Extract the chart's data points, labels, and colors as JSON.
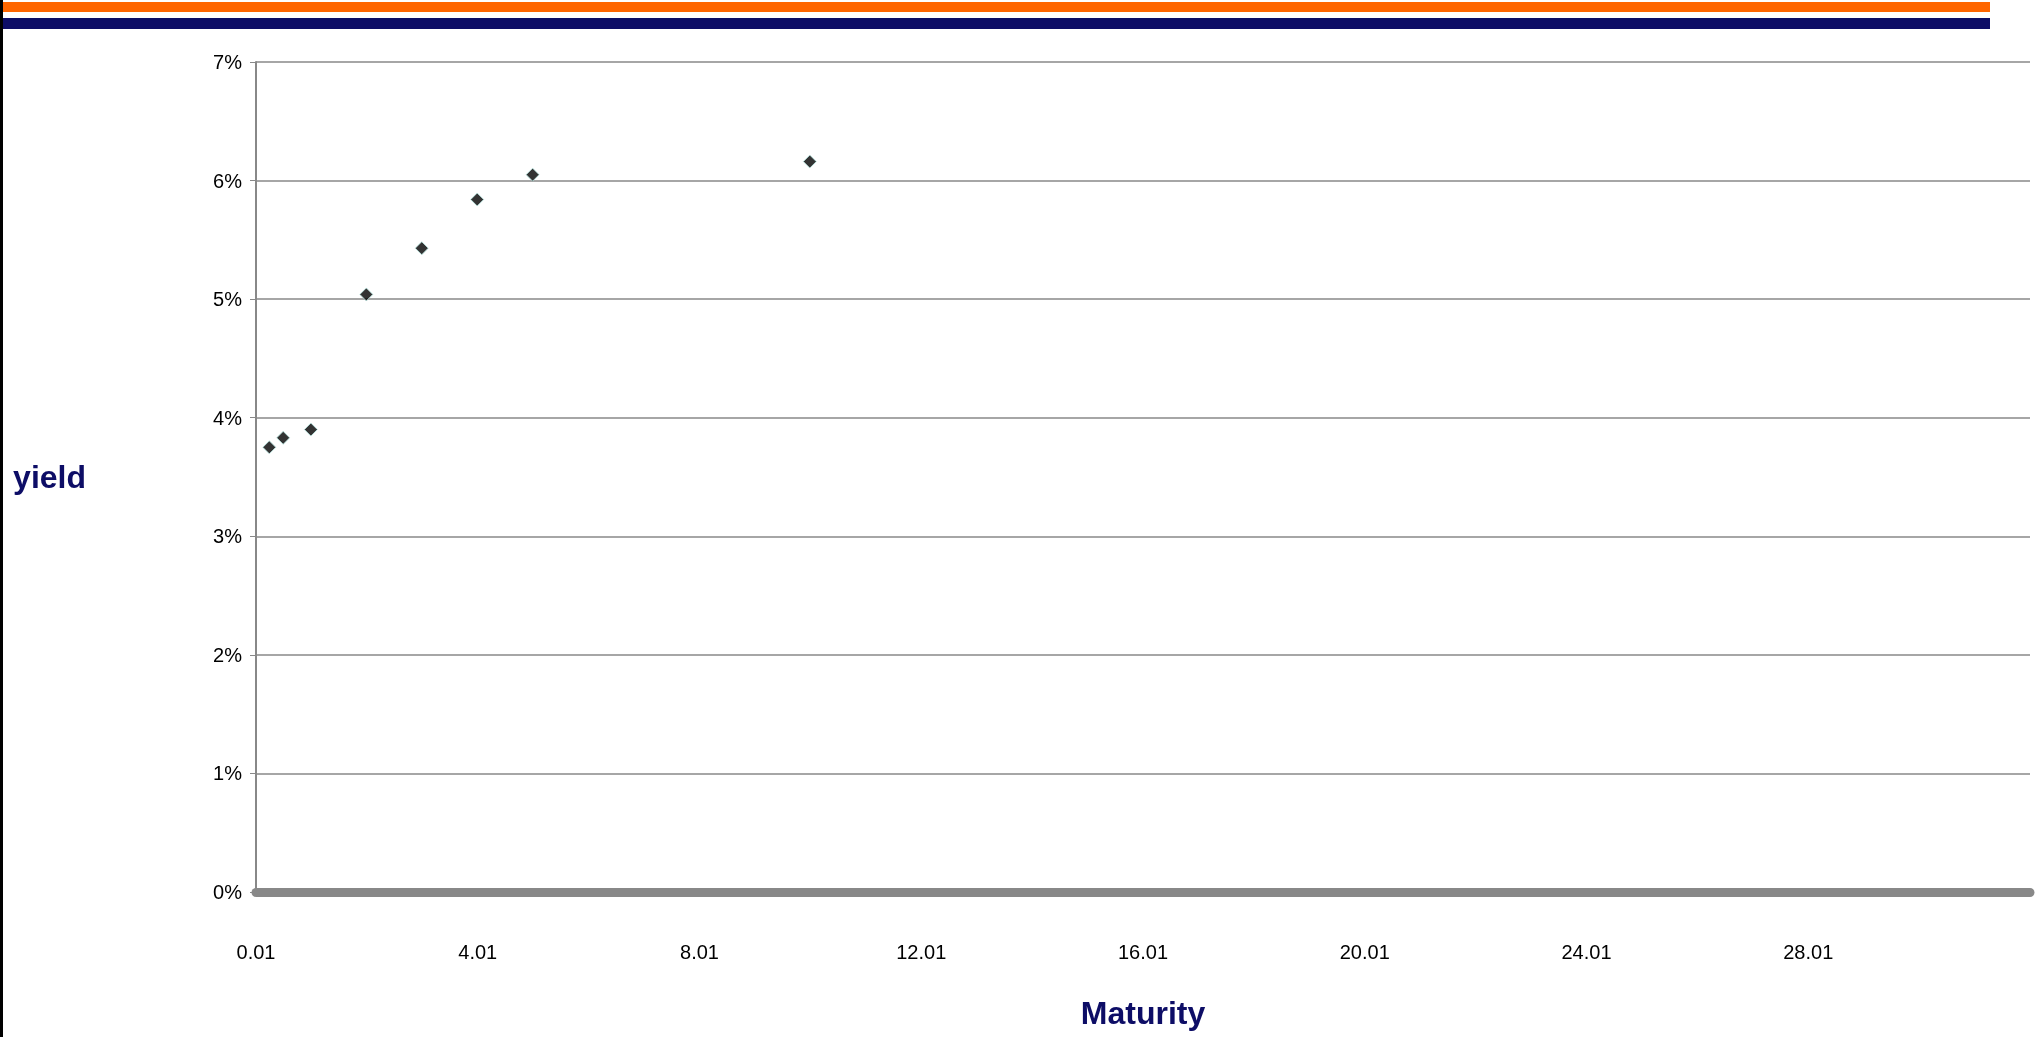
{
  "chart_data": {
    "type": "scatter",
    "xlabel": "Maturity",
    "ylabel": "yield",
    "x": [
      0.25,
      0.5,
      1,
      2,
      3,
      4,
      5,
      10
    ],
    "values": [
      3.75,
      3.83,
      3.9,
      5.04,
      5.43,
      5.84,
      6.05,
      6.16
    ],
    "color": "#000000",
    "marker": "diamond",
    "xlim": [
      0.01,
      32.01
    ],
    "xticks": [
      0.01,
      4.01,
      8.01,
      12.01,
      16.01,
      20.01,
      24.01,
      28.01
    ],
    "ylim": [
      0,
      7
    ],
    "yticks": [
      {
        "value": 0,
        "label": "0%"
      },
      {
        "value": 1,
        "label": "1%"
      },
      {
        "value": 2,
        "label": "2%"
      },
      {
        "value": 3,
        "label": "3%"
      },
      {
        "value": 4,
        "label": "4%"
      },
      {
        "value": 5,
        "label": "5%"
      },
      {
        "value": 6,
        "label": "6%"
      },
      {
        "value": 7,
        "label": "7%"
      }
    ],
    "grid": "y"
  }
}
